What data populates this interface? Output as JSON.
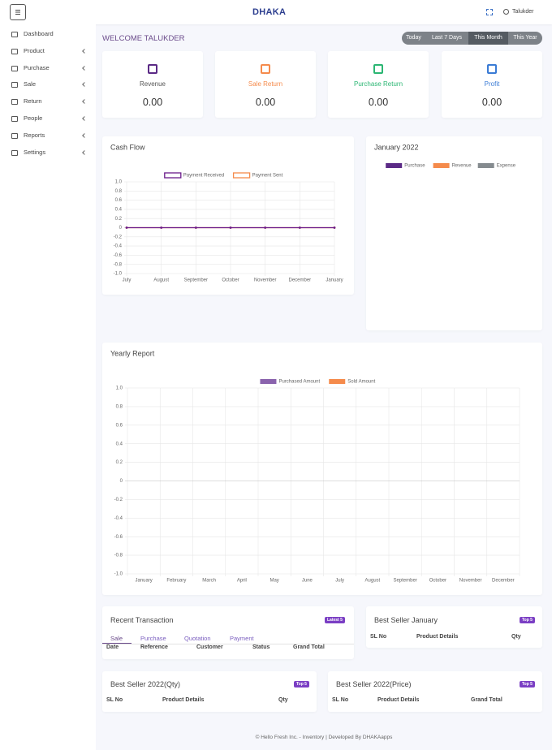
{
  "header": {
    "logo": "DHAKA",
    "user": "Talukder"
  },
  "sidebar": [
    "Dashboard",
    "Product",
    "Purchase",
    "Sale",
    "Return",
    "People",
    "Reports",
    "Settings"
  ],
  "welcome": "WELCOME TALUKDER",
  "filters": [
    "Today",
    "Last 7 Days",
    "This Month",
    "This Year"
  ],
  "cards": [
    {
      "label": "Revenue",
      "value": "0.00"
    },
    {
      "label": "Sale Return",
      "value": "0.00"
    },
    {
      "label": "Purchase Return",
      "value": "0.00"
    },
    {
      "label": "Profit",
      "value": "0.00"
    }
  ],
  "chart_data": [
    {
      "type": "line",
      "title": "Cash Flow",
      "categories": [
        "July",
        "August",
        "September",
        "October",
        "November",
        "December",
        "January"
      ],
      "series": [
        {
          "name": "Payment Received",
          "color": "#6a1b8a",
          "values": [
            0,
            0,
            0,
            0,
            0,
            0,
            0
          ]
        },
        {
          "name": "Payment Sent",
          "color": "#f58b4c",
          "values": [
            0,
            0,
            0,
            0,
            0,
            0,
            0
          ]
        }
      ],
      "ylim": [
        -1,
        1
      ],
      "yticks": [
        {
          "value": 1,
          "label": "1.0"
        },
        0.8,
        0.6,
        0.4,
        0.2,
        0,
        -0.2,
        -0.4,
        -0.6,
        -0.8,
        {
          "value": -1,
          "label": "-1.0"
        }
      ],
      "grid": true
    },
    {
      "type": "doughnut",
      "title": "January 2022",
      "categories": [
        "Purchase",
        "Revenue",
        "Expense"
      ],
      "colors": [
        "#5b2a86",
        "#f58b4c",
        "#858b8f"
      ]
    },
    {
      "type": "bar",
      "title": "Yearly Report",
      "categories": [
        "January",
        "February",
        "March",
        "April",
        "May",
        "June",
        "July",
        "August",
        "September",
        "October",
        "November",
        "December"
      ],
      "series": [
        {
          "name": "Purchased Amount",
          "color": "#8a63ad",
          "values": [
            0,
            0,
            0,
            0,
            0,
            0,
            0,
            0,
            0,
            0,
            0,
            0
          ]
        },
        {
          "name": "Sold Amount",
          "color": "#f58b4c",
          "values": [
            0,
            0,
            0,
            0,
            0,
            0,
            0,
            0,
            0,
            0,
            0,
            0
          ]
        }
      ],
      "ylim": [
        -1,
        1
      ],
      "yticks": [
        {
          "value": 1,
          "label": "1.0"
        },
        0.8,
        0.6,
        0.4,
        0.2,
        0,
        -0.2,
        -0.4,
        -0.6,
        -0.8,
        {
          "value": -1,
          "label": "-1.0"
        }
      ],
      "grid": true
    }
  ],
  "recent_transaction": {
    "title": "Recent Transaction",
    "badge": "Latest 5",
    "tabs": [
      "Sale",
      "Purchase",
      "Quotation",
      "Payment"
    ],
    "columns": [
      "Date",
      "Reference",
      "Customer",
      "Status",
      "Grand Total"
    ]
  },
  "best_seller_month": {
    "title": "Best Seller January",
    "badge": "Top 5",
    "columns": [
      "SL No",
      "Product Details",
      "Qty"
    ]
  },
  "best_seller_qty": {
    "title": "Best Seller 2022(Qty)",
    "badge": "Top 5",
    "columns": [
      "SL No",
      "Product Details",
      "Qty"
    ]
  },
  "best_seller_price": {
    "title": "Best Seller 2022(Price)",
    "badge": "Top 5",
    "columns": [
      "SL No",
      "Product Details",
      "Grand Total"
    ]
  },
  "footer": "© Hello Fresh Inc. - Inventory | Developed By DHAKAapps"
}
